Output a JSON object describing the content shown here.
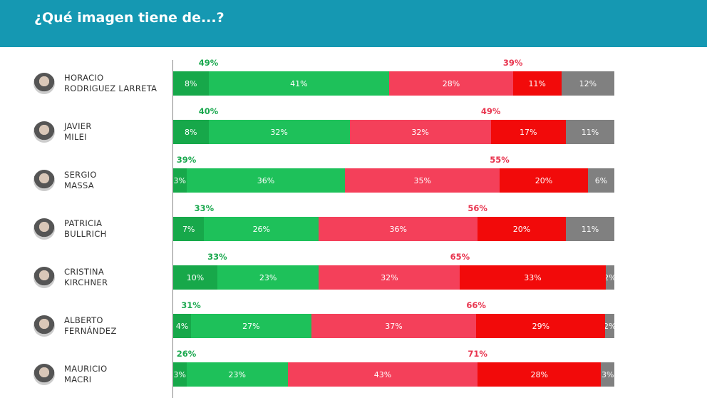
{
  "chart_data": {
    "type": "bar",
    "stacked": true,
    "orientation": "horizontal",
    "title": "¿Qué imagen tiene de...?",
    "categories": [
      "HORACIO RODRIGUEZ LARRETA",
      "JAVIER MILEI",
      "SERGIO MASSA",
      "PATRICIA BULLRICH",
      "CRISTINA KIRCHNER",
      "ALBERTO FERNÁNDEZ",
      "MAURICIO MACRI"
    ],
    "name_lines": [
      [
        "HORACIO",
        "RODRIGUEZ LARRETA"
      ],
      [
        "JAVIER",
        "MILEI"
      ],
      [
        "SERGIO",
        "MASSA"
      ],
      [
        "PATRICIA",
        "BULLRICH"
      ],
      [
        "CRISTINA",
        "KIRCHNER"
      ],
      [
        "ALBERTO",
        "FERNÁNDEZ"
      ],
      [
        "MAURICIO",
        "MACRI"
      ]
    ],
    "series": [
      {
        "values": [
          8,
          8,
          3,
          7,
          10,
          4,
          3
        ],
        "color": "#17a84a"
      },
      {
        "values": [
          41,
          32,
          36,
          26,
          23,
          27,
          23
        ],
        "color": "#1ec15a"
      },
      {
        "values": [
          28,
          32,
          35,
          36,
          32,
          37,
          43
        ],
        "color": "#f4405a"
      },
      {
        "values": [
          11,
          17,
          20,
          20,
          33,
          29,
          28
        ],
        "color": "#f20a0a"
      },
      {
        "values": [
          12,
          11,
          6,
          11,
          2,
          2,
          3
        ],
        "color": "#808080"
      }
    ],
    "positive_totals": [
      49,
      40,
      39,
      33,
      33,
      31,
      26
    ],
    "negative_totals": [
      39,
      49,
      55,
      56,
      65,
      66,
      71
    ],
    "positive_color": "#1aa84e",
    "negative_color": "#e8344e"
  }
}
